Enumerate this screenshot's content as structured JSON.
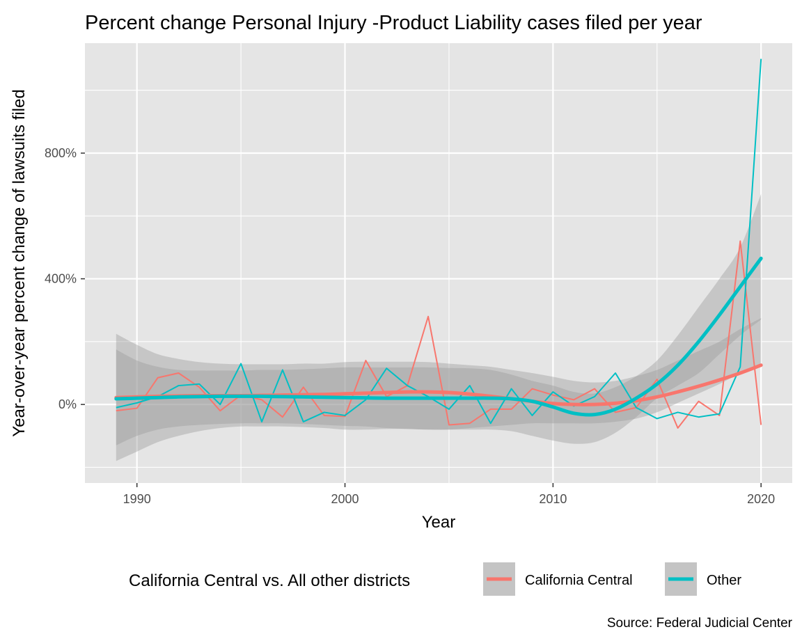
{
  "chart_data": {
    "type": "line",
    "title": "Percent change Personal Injury -Product Liability cases filed per year",
    "xlabel": "Year",
    "ylabel": "Year-over-year percent change of lawsuits filed",
    "caption": "Source: Federal Judicial Center",
    "legend_title": "California Central vs. All other districts",
    "legend_placement": "bottom",
    "grid": true,
    "xlim": [
      1987.5,
      2021.5
    ],
    "ylim": [
      -250,
      1150
    ],
    "x_ticks": [
      1990,
      2000,
      2010,
      2020
    ],
    "y_ticks": [
      0,
      400,
      800
    ],
    "y_tick_labels": [
      "0%",
      "400%",
      "800%"
    ],
    "x_tick_labels": [
      "1990",
      "2000",
      "2010",
      "2020"
    ],
    "colors": {
      "panel": "#e5e5e5",
      "grid": "#ffffff",
      "ribbon": "#999999",
      "california_central": "#f8766d",
      "other": "#00bfc4"
    },
    "x": [
      1989,
      1990,
      1991,
      1992,
      1993,
      1994,
      1995,
      1996,
      1997,
      1998,
      1999,
      2000,
      2001,
      2002,
      2003,
      2004,
      2005,
      2006,
      2007,
      2008,
      2009,
      2010,
      2011,
      2012,
      2013,
      2014,
      2015,
      2016,
      2017,
      2018,
      2019,
      2020
    ],
    "series": [
      {
        "name": "California Central",
        "color": "#f8766d",
        "values": [
          -20,
          -12,
          85,
          100,
          55,
          -20,
          30,
          15,
          -40,
          55,
          -35,
          -38,
          140,
          25,
          60,
          280,
          -65,
          -60,
          -15,
          -15,
          50,
          30,
          15,
          50,
          -25,
          -10,
          80,
          -75,
          10,
          -35,
          520,
          -65
        ],
        "smooth": [
          22,
          24,
          26,
          27,
          28,
          28,
          28,
          29,
          30,
          31,
          32,
          34,
          36,
          38,
          40,
          40,
          38,
          33,
          26,
          18,
          10,
          3,
          0,
          0,
          4,
          12,
          24,
          40,
          58,
          78,
          100,
          125
        ],
        "smooth_lower": [
          -180,
          -150,
          -120,
          -100,
          -85,
          -75,
          -70,
          -70,
          -70,
          -72,
          -75,
          -80,
          -80,
          -78,
          -78,
          -80,
          -80,
          -75,
          -70,
          -65,
          -60,
          -60,
          -60,
          -60,
          -55,
          -45,
          -25,
          5,
          35,
          65,
          100,
          130
        ],
        "smooth_upper": [
          225,
          190,
          160,
          145,
          135,
          130,
          128,
          128,
          128,
          130,
          130,
          135,
          136,
          136,
          136,
          135,
          130,
          125,
          120,
          110,
          100,
          88,
          75,
          70,
          75,
          90,
          110,
          140,
          170,
          200,
          240,
          275
        ]
      },
      {
        "name": "Other",
        "color": "#00bfc4",
        "values": [
          -10,
          5,
          25,
          60,
          65,
          0,
          130,
          -55,
          110,
          -55,
          -25,
          -35,
          15,
          115,
          60,
          25,
          -15,
          60,
          -60,
          50,
          -35,
          40,
          -5,
          25,
          100,
          -10,
          -45,
          -25,
          -40,
          -30,
          120,
          1100
        ],
        "smooth": [
          18,
          20,
          22,
          24,
          25,
          26,
          26,
          26,
          25,
          24,
          23,
          22,
          21,
          20,
          20,
          20,
          20,
          20,
          20,
          18,
          10,
          -8,
          -28,
          -32,
          -15,
          20,
          65,
          125,
          200,
          285,
          375,
          465
        ],
        "smooth_lower": [
          -130,
          -100,
          -80,
          -70,
          -65,
          -62,
          -60,
          -60,
          -60,
          -62,
          -65,
          -68,
          -70,
          -75,
          -78,
          -80,
          -80,
          -80,
          -80,
          -85,
          -100,
          -115,
          -125,
          -120,
          -90,
          -40,
          20,
          60,
          100,
          160,
          220,
          270
        ],
        "smooth_upper": [
          175,
          140,
          120,
          110,
          108,
          108,
          108,
          110,
          110,
          112,
          115,
          118,
          118,
          118,
          118,
          118,
          116,
          115,
          110,
          95,
          75,
          60,
          40,
          35,
          55,
          90,
          140,
          220,
          310,
          400,
          500,
          670
        ]
      }
    ]
  }
}
